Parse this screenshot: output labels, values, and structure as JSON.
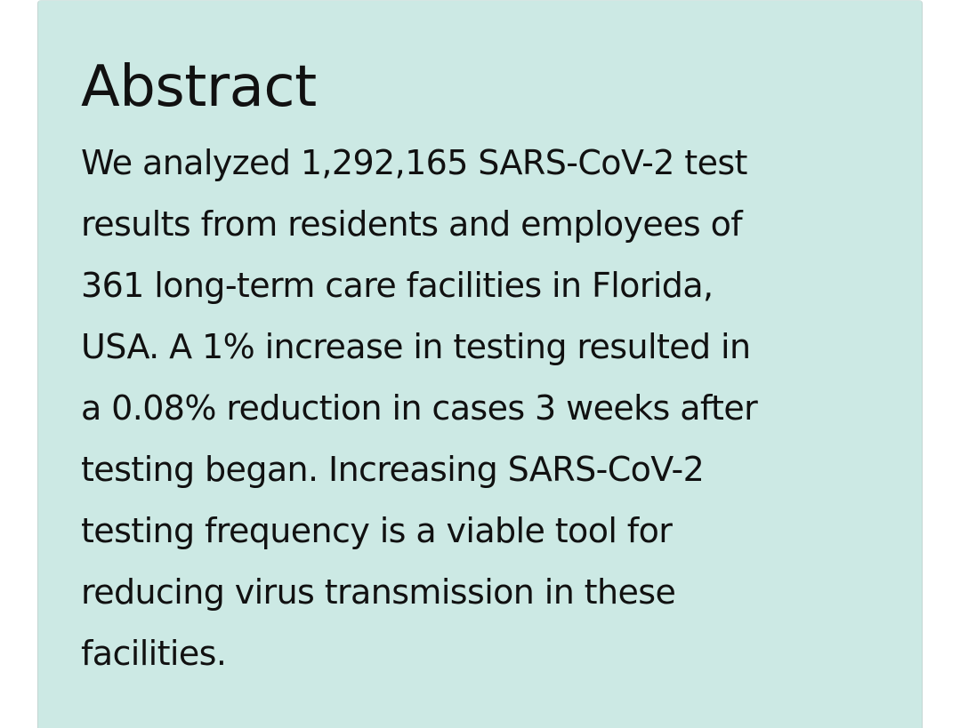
{
  "abstract": {
    "heading": "Abstract",
    "lines": [
      "We analyzed 1,292,165 SARS-CoV-2 test",
      "results from residents and employees of",
      "361 long-term care facilities in Florida,",
      "USA. A 1% increase in testing resulted in",
      "a 0.08% reduction in cases 3 weeks after",
      "testing began. Increasing SARS-CoV-2",
      "testing frequency is a viable tool for",
      "reducing virus transmission in these",
      "facilities."
    ]
  },
  "colors": {
    "panel_background": "#cce9e4",
    "text": "#111111"
  }
}
